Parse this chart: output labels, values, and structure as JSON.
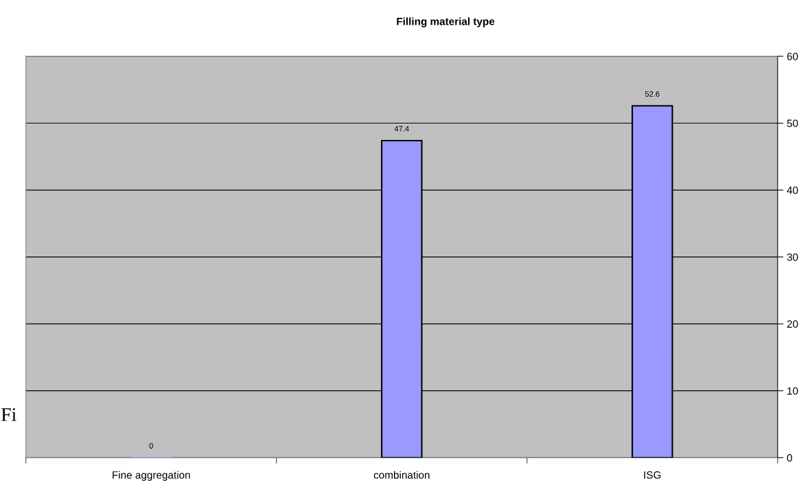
{
  "chart_data": {
    "type": "bar",
    "title": "Filling material type",
    "categories": [
      "Fine aggregation",
      "combination",
      "ISG"
    ],
    "values": [
      0,
      47.4,
      52.6
    ],
    "colors": [
      "#cc99ff",
      "#9999ff",
      "#9999ff"
    ],
    "ylim": [
      0,
      60
    ],
    "yticks": [
      0,
      10,
      20,
      30,
      40,
      50,
      60
    ],
    "grid": "y",
    "data_labels": true,
    "legend": false,
    "annotations": [
      "Fi"
    ]
  }
}
